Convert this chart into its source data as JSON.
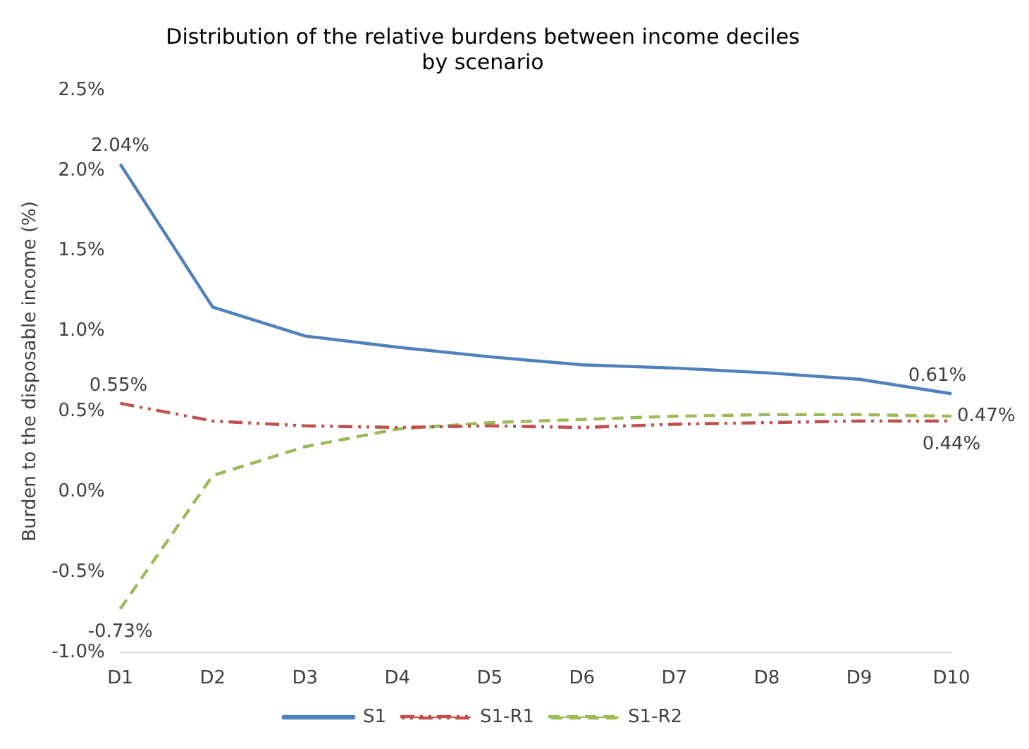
{
  "chart_data": {
    "type": "line",
    "title": [
      "Distribution of the relative burdens between income deciles",
      "by scenario"
    ],
    "ylabel": "Burden to the disposable income (%)",
    "categories": [
      "D1",
      "D2",
      "D3",
      "D4",
      "D5",
      "D6",
      "D7",
      "D8",
      "D9",
      "D10"
    ],
    "series": [
      {
        "name": "S1",
        "color": "#4f81bd",
        "line_style": "solid",
        "values": [
          2.04,
          1.15,
          0.97,
          0.9,
          0.84,
          0.79,
          0.77,
          0.74,
          0.7,
          0.61
        ],
        "value_labels": [
          "2.04%",
          null,
          null,
          null,
          null,
          null,
          null,
          null,
          null,
          "0.61%"
        ]
      },
      {
        "name": "S1-R1",
        "color": "#c0504d",
        "line_style": "dashdotdot",
        "values": [
          0.55,
          0.44,
          0.41,
          0.4,
          0.41,
          0.4,
          0.42,
          0.43,
          0.44,
          0.44
        ],
        "value_labels": [
          "0.55%",
          null,
          null,
          null,
          null,
          null,
          null,
          null,
          null,
          "0.44%"
        ]
      },
      {
        "name": "S1-R2",
        "color": "#9bbb59",
        "line_style": "dashed",
        "values": [
          -0.73,
          0.1,
          0.28,
          0.39,
          0.43,
          0.45,
          0.47,
          0.48,
          0.48,
          0.47
        ],
        "value_labels": [
          "-0.73%",
          null,
          null,
          null,
          null,
          null,
          null,
          null,
          null,
          "0.47%"
        ]
      }
    ],
    "ylim": [
      -1.0,
      2.5
    ],
    "yticks": [
      {
        "value": -1.0,
        "label": "-1.0%"
      },
      {
        "value": -0.5,
        "label": "-0.5%"
      },
      {
        "value": 0,
        "label": "0.0%"
      },
      {
        "value": 0.5,
        "label": "0.5%"
      },
      {
        "value": 1.0,
        "label": "1.0%"
      },
      {
        "value": 1.5,
        "label": "1.5%"
      },
      {
        "value": 2.0,
        "label": "2.0%"
      },
      {
        "value": 2.5,
        "label": "2.5%"
      }
    ],
    "grid": false,
    "legend": "bottom",
    "marker": "none"
  }
}
